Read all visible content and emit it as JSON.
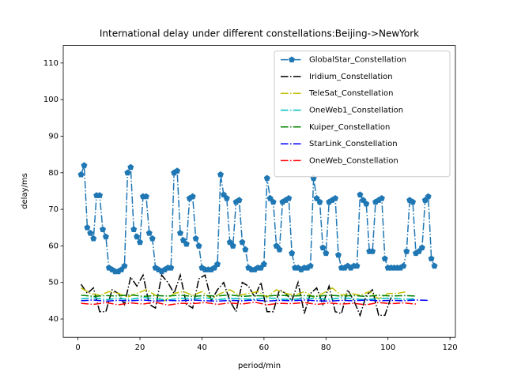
{
  "chart_data": {
    "type": "line",
    "title": "International delay under different constellations:Beijing->NewYork",
    "xlabel": "period/min",
    "ylabel": "delay/ms",
    "xlim": [
      -4.75,
      121.75
    ],
    "ylim": [
      35,
      114.8
    ],
    "xticks": [
      0,
      20,
      40,
      60,
      80,
      100,
      120
    ],
    "yticks": [
      40,
      50,
      60,
      70,
      80,
      90,
      100,
      110
    ],
    "legend": "upper right",
    "linestyle": "dashdot",
    "series": [
      {
        "name": "GlobalStar_Constellation",
        "color": "#1f77b4",
        "marker": "pentagon",
        "x": [
          1,
          2,
          3,
          4,
          5,
          6,
          7,
          8,
          9,
          10,
          11,
          12,
          13,
          14,
          15,
          16,
          17,
          18,
          19,
          20,
          21,
          22,
          23,
          24,
          25,
          26,
          27,
          28,
          29,
          30,
          31,
          32,
          33,
          34,
          35,
          36,
          37,
          38,
          39,
          40,
          41,
          42,
          43,
          44,
          45,
          46,
          47,
          48,
          49,
          50,
          51,
          52,
          53,
          54,
          55,
          56,
          57,
          58,
          59,
          60,
          61,
          62,
          63,
          64,
          65,
          66,
          67,
          68,
          69,
          70,
          71,
          72,
          73,
          74,
          75,
          76,
          77,
          78,
          79,
          80,
          81,
          82,
          83,
          84,
          85,
          86,
          87,
          88,
          89,
          90,
          91,
          92,
          93,
          94,
          95,
          96,
          97,
          98,
          99,
          100,
          101,
          102,
          103,
          104,
          105,
          106,
          107,
          108,
          109,
          110,
          111,
          112,
          113,
          114,
          115
        ],
        "values": [
          79.5,
          82,
          65,
          63.5,
          62,
          73.8,
          73.8,
          64.5,
          62.5,
          54,
          53.5,
          53,
          53,
          53.5,
          54.5,
          80,
          81.5,
          64.5,
          62.5,
          61,
          73.5,
          73.5,
          63.5,
          62,
          54,
          53.5,
          53,
          53.5,
          54,
          54,
          80,
          80.5,
          63.5,
          61.5,
          60.5,
          73,
          73.5,
          62,
          60,
          54,
          53.5,
          53.5,
          53.5,
          54,
          55,
          79.5,
          74,
          73,
          61,
          60,
          72,
          72.5,
          61,
          59,
          54,
          53.5,
          53.5,
          54,
          54,
          55,
          78.5,
          73,
          72,
          60,
          59,
          72,
          72.5,
          73,
          58,
          54,
          54,
          53.5,
          54,
          54,
          54.5,
          78.5,
          73,
          72,
          59.5,
          58,
          72,
          72.5,
          73,
          57.5,
          54,
          54,
          54.5,
          54,
          54.5,
          54.5,
          74,
          72.5,
          71.5,
          58.5,
          58.5,
          72,
          72.5,
          73,
          56.5,
          54,
          54,
          54,
          54,
          54,
          54.5,
          58.5,
          72.5,
          72,
          58,
          58.5,
          59.5,
          72.5,
          73.5,
          56.5,
          54.5
        ]
      },
      {
        "name": "Iridium_Constellation",
        "color": "#000000",
        "x": [
          1,
          3,
          5,
          7,
          9,
          11,
          13,
          15,
          17,
          19,
          21,
          23,
          25,
          27,
          29,
          31,
          33,
          35,
          37,
          39,
          41,
          43,
          45,
          47,
          49,
          51,
          53,
          55,
          57,
          59,
          61,
          63,
          65,
          67,
          69,
          71,
          73,
          75,
          77,
          79,
          81,
          83,
          85,
          87,
          89,
          91,
          93,
          95,
          97,
          99,
          101
        ],
        "values": [
          49.5,
          47,
          48.5,
          42,
          42,
          48,
          47,
          44,
          51.5,
          49,
          52,
          44,
          43,
          52,
          50,
          47,
          52,
          44,
          43,
          51,
          52,
          45,
          48,
          50,
          45,
          42,
          50,
          49,
          46,
          50,
          42,
          42,
          48,
          47,
          45,
          50,
          41.5,
          47,
          48.5,
          44,
          49,
          42,
          41.5,
          48,
          45,
          41,
          46.5,
          48,
          41,
          41,
          46
        ]
      },
      {
        "name": "TeleSat_Constellation",
        "color": "#bfbf00",
        "x": [
          1,
          4,
          7,
          10,
          13,
          16,
          19,
          22,
          25,
          28,
          31,
          34,
          37,
          40,
          43,
          46,
          49,
          52,
          55,
          58,
          61,
          64,
          67,
          70,
          73,
          76,
          79,
          82,
          85,
          88,
          91,
          94,
          97,
          100,
          103,
          106
        ],
        "values": [
          48.5,
          47,
          46.5,
          47.5,
          47,
          46,
          47,
          48,
          46.5,
          45,
          47,
          47.5,
          46.5,
          47.5,
          45.5,
          47,
          48,
          46.5,
          47,
          47.5,
          46,
          48,
          47,
          46.5,
          47.5,
          46,
          47,
          48.5,
          46.5,
          47,
          46.5,
          47.5,
          45.5,
          47,
          47,
          47.5
        ]
      },
      {
        "name": "OneWeb1_Constellation",
        "color": "#00bfbf",
        "x": [
          1,
          5,
          9,
          13,
          17,
          21,
          25,
          29,
          33,
          37,
          41,
          45,
          49,
          53,
          57,
          61,
          65,
          69,
          73,
          77,
          81,
          85,
          89,
          93,
          97,
          101,
          105,
          109
        ],
        "values": [
          45.5,
          45.8,
          45.3,
          45.6,
          45.4,
          45.9,
          45.5,
          45.2,
          45.7,
          45.5,
          45.8,
          45.3,
          45.6,
          45.5,
          45.4,
          45.8,
          45.5,
          45.3,
          45.7,
          45.6,
          45.4,
          45.8,
          45.5,
          45.3,
          45.6,
          45.7,
          45.4,
          45.5
        ]
      },
      {
        "name": "Kuiper_Constellation",
        "color": "#008000",
        "x": [
          1,
          5,
          9,
          13,
          17,
          21,
          25,
          29,
          33,
          37,
          41,
          45,
          49,
          53,
          57,
          61,
          65,
          69,
          73,
          77,
          81,
          85,
          89,
          93,
          97,
          101,
          105,
          109
        ],
        "values": [
          46.5,
          46.2,
          46.4,
          46.3,
          46.6,
          46.2,
          46.4,
          46.3,
          46.5,
          46.2,
          46.4,
          46.3,
          46.6,
          46.2,
          46.4,
          46.3,
          46.5,
          46.3,
          46.4,
          46.2,
          46.5,
          46.3,
          46.4,
          46.2,
          46.5,
          46.3,
          46.4,
          46.3
        ]
      },
      {
        "name": "StarLink_Constellation",
        "color": "#0000ff",
        "x": [
          1,
          5,
          9,
          13,
          17,
          21,
          25,
          29,
          33,
          37,
          41,
          45,
          49,
          53,
          57,
          61,
          65,
          69,
          73,
          77,
          81,
          85,
          89,
          93,
          97,
          101,
          105,
          109,
          113
        ],
        "values": [
          45,
          45.2,
          44.9,
          45.1,
          45,
          45.2,
          44.9,
          45.1,
          45,
          45.2,
          45,
          44.9,
          45.1,
          45,
          45.2,
          44.9,
          45.1,
          45,
          45.2,
          45,
          44.9,
          45.1,
          45,
          45.2,
          45,
          45.1,
          45,
          45.2,
          45.1
        ]
      },
      {
        "name": "OneWeb_Constellation",
        "color": "#ff0000",
        "x": [
          1,
          5,
          9,
          13,
          17,
          21,
          25,
          29,
          33,
          37,
          41,
          45,
          49,
          53,
          57,
          61,
          65,
          69,
          73,
          77,
          81,
          85,
          89,
          93,
          97,
          101,
          105,
          109
        ],
        "values": [
          44.3,
          44,
          44.5,
          43.9,
          44.4,
          44.1,
          44.6,
          43.8,
          44.3,
          44.2,
          44.5,
          44,
          44.4,
          44.1,
          44.6,
          43.9,
          44.3,
          44.2,
          44.5,
          44,
          44.4,
          44.1,
          44.3,
          43.9,
          44.5,
          44.2,
          44.4,
          44.1
        ]
      }
    ]
  }
}
